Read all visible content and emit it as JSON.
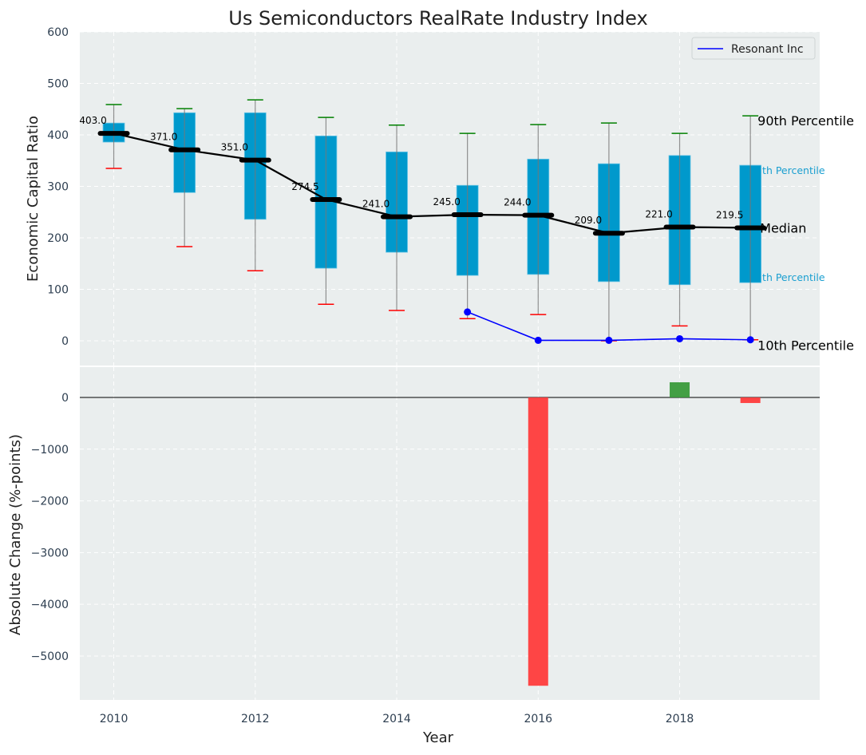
{
  "chart_data": {
    "type": "box+line+bar",
    "title": "Us Semiconductors RealRate Industry Index",
    "xlabel": "Year",
    "xlim": [
      2009.52,
      2019.98
    ],
    "xticks": [
      2010,
      2012,
      2014,
      2016,
      2018
    ],
    "top_panel": {
      "ylabel": "Economic Capital Ratio",
      "ylim": [
        -48,
        600
      ],
      "yticks": [
        0,
        100,
        200,
        300,
        400,
        500,
        600
      ],
      "grid": true,
      "years": [
        2010,
        2011,
        2012,
        2013,
        2014,
        2015,
        2016,
        2017,
        2018,
        2019
      ],
      "p10": [
        335,
        183,
        136,
        71,
        59,
        43,
        51,
        0,
        29,
        2
      ],
      "p25": [
        386,
        288,
        236,
        141,
        172,
        127,
        129,
        115,
        109,
        113
      ],
      "median": [
        403.0,
        371.0,
        351.0,
        274.5,
        241.0,
        245.0,
        244.0,
        209.0,
        221.0,
        219.5
      ],
      "median_labels": [
        "403.0",
        "371.0",
        "351.0",
        "274.5",
        "241.0",
        "245.0",
        "244.0",
        "209.0",
        "221.0",
        "219.5"
      ],
      "p75": [
        423,
        443,
        443,
        398,
        367,
        302,
        353,
        344,
        360,
        341
      ],
      "p90": [
        459,
        451,
        468,
        434,
        419,
        403,
        420,
        423,
        403,
        437
      ],
      "series": [
        {
          "name": "Resonant Inc",
          "color": "#0000ff",
          "x": [
            2015,
            2016,
            2017,
            2018,
            2019
          ],
          "y": [
            56,
            1,
            1,
            4,
            2
          ]
        }
      ],
      "legend": {
        "placement": "top-right",
        "entries": [
          "Resonant Inc"
        ]
      },
      "annotations": {
        "p90": "90th Percentile",
        "p75": "75th Percentile",
        "median": "Median",
        "p25": "25th Percentile",
        "p10": "10th Percentile"
      },
      "colors": {
        "box": "#0099cc",
        "p90": "#008000",
        "p10": "#ff0000",
        "median": "#000000",
        "annot75": "#1a9fd0"
      }
    },
    "bottom_panel": {
      "type": "bar",
      "ylabel": "Absolute Change (%-points)",
      "ylim": [
        -5849,
        586
      ],
      "yticks": [
        0,
        -1000,
        -2000,
        -3000,
        -4000,
        -5000
      ],
      "ytick_labels": [
        "0",
        "−1000",
        "−2000",
        "−3000",
        "−4000",
        "−5000"
      ],
      "x": [
        2016,
        2018,
        2019
      ],
      "values": [
        -5575,
        293,
        -108
      ],
      "colors": {
        "positive": "#3a9a3a",
        "negative": "#ff3b3b"
      }
    }
  }
}
